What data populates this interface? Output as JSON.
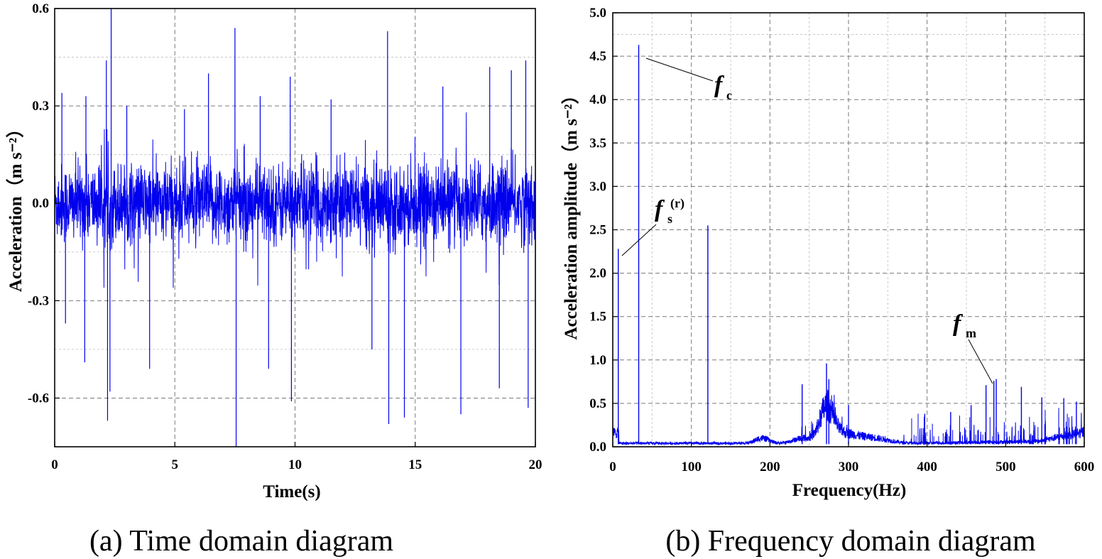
{
  "chart_data": [
    {
      "type": "line",
      "panel": "a",
      "caption": "(a) Time domain diagram",
      "xlabel": "Time(s)",
      "ylabel": "Acceleration（m s⁻²）",
      "xlim": [
        0,
        20
      ],
      "ylim": [
        -0.75,
        0.6
      ],
      "xticks": [
        0,
        5,
        10,
        15,
        20
      ],
      "yticks": [
        -0.6,
        -0.3,
        0.0,
        0.3,
        0.6
      ],
      "ytick_labels": [
        "-0.6",
        "-0.3",
        "0.0",
        "0.3",
        "0.6"
      ],
      "grid": true,
      "series": [
        {
          "color": "#0000ee",
          "rms": 0.06,
          "spikes": [
            {
              "x": 0.3,
              "y": 0.34
            },
            {
              "x": 0.45,
              "y": -0.37
            },
            {
              "x": 1.3,
              "y": 0.33
            },
            {
              "x": 1.25,
              "y": -0.49
            },
            {
              "x": 2.15,
              "y": 0.44
            },
            {
              "x": 2.2,
              "y": -0.67
            },
            {
              "x": 2.35,
              "y": 0.6
            },
            {
              "x": 2.3,
              "y": -0.58
            },
            {
              "x": 3.0,
              "y": 0.3
            },
            {
              "x": 3.95,
              "y": -0.51
            },
            {
              "x": 5.4,
              "y": 0.29
            },
            {
              "x": 6.4,
              "y": 0.4
            },
            {
              "x": 7.5,
              "y": 0.54
            },
            {
              "x": 7.55,
              "y": -0.75
            },
            {
              "x": 8.55,
              "y": 0.33
            },
            {
              "x": 8.9,
              "y": -0.51
            },
            {
              "x": 9.8,
              "y": 0.39
            },
            {
              "x": 9.85,
              "y": -0.61
            },
            {
              "x": 11.5,
              "y": 0.32
            },
            {
              "x": 13.2,
              "y": -0.45
            },
            {
              "x": 13.85,
              "y": 0.53
            },
            {
              "x": 13.9,
              "y": -0.68
            },
            {
              "x": 14.55,
              "y": -0.66
            },
            {
              "x": 16.15,
              "y": 0.36
            },
            {
              "x": 16.9,
              "y": -0.65
            },
            {
              "x": 18.1,
              "y": 0.42
            },
            {
              "x": 18.5,
              "y": -0.57
            },
            {
              "x": 19.6,
              "y": 0.44
            },
            {
              "x": 19.7,
              "y": -0.63
            },
            {
              "x": 19.0,
              "y": 0.41
            }
          ]
        }
      ]
    },
    {
      "type": "line",
      "panel": "b",
      "caption": "(b) Frequency domain diagram",
      "xlabel": "Frequency(Hz)",
      "ylabel": "Acceleration  amplitude（m s⁻²）",
      "xlim": [
        0,
        600
      ],
      "ylim": [
        0,
        5.0
      ],
      "xticks": [
        0,
        100,
        200,
        300,
        400,
        500,
        600
      ],
      "yticks": [
        0.0,
        0.5,
        1.0,
        1.5,
        2.0,
        2.5,
        3.0,
        3.5,
        4.0,
        4.5,
        5.0
      ],
      "ytick_labels": [
        "0.0",
        "0.5",
        "1.0",
        "1.5",
        "2.0",
        "2.5",
        "3.0",
        "3.5",
        "4.0",
        "4.5",
        "5.0"
      ],
      "grid": true,
      "series": [
        {
          "color": "#0000ee",
          "peaks": [
            {
              "x": 7,
              "y": 2.28
            },
            {
              "x": 33,
              "y": 4.63
            },
            {
              "x": 121,
              "y": 2.55
            },
            {
              "x": 241,
              "y": 0.72
            },
            {
              "x": 272,
              "y": 0.96
            },
            {
              "x": 275,
              "y": 0.78
            },
            {
              "x": 300,
              "y": 0.48
            },
            {
              "x": 397,
              "y": 0.38
            },
            {
              "x": 430,
              "y": 0.4
            },
            {
              "x": 456,
              "y": 0.48
            },
            {
              "x": 475,
              "y": 0.71
            },
            {
              "x": 485,
              "y": 0.76
            },
            {
              "x": 488,
              "y": 0.78
            },
            {
              "x": 520,
              "y": 0.69
            },
            {
              "x": 546,
              "y": 0.57
            },
            {
              "x": 574,
              "y": 0.56
            },
            {
              "x": 590,
              "y": 0.52
            }
          ]
        }
      ],
      "annotations": [
        {
          "main": "f",
          "sub": "c",
          "sup": ""
        },
        {
          "main": "f",
          "sub": "s",
          "sup": "(r)"
        },
        {
          "main": "f",
          "sub": "m",
          "sup": ""
        }
      ]
    }
  ]
}
